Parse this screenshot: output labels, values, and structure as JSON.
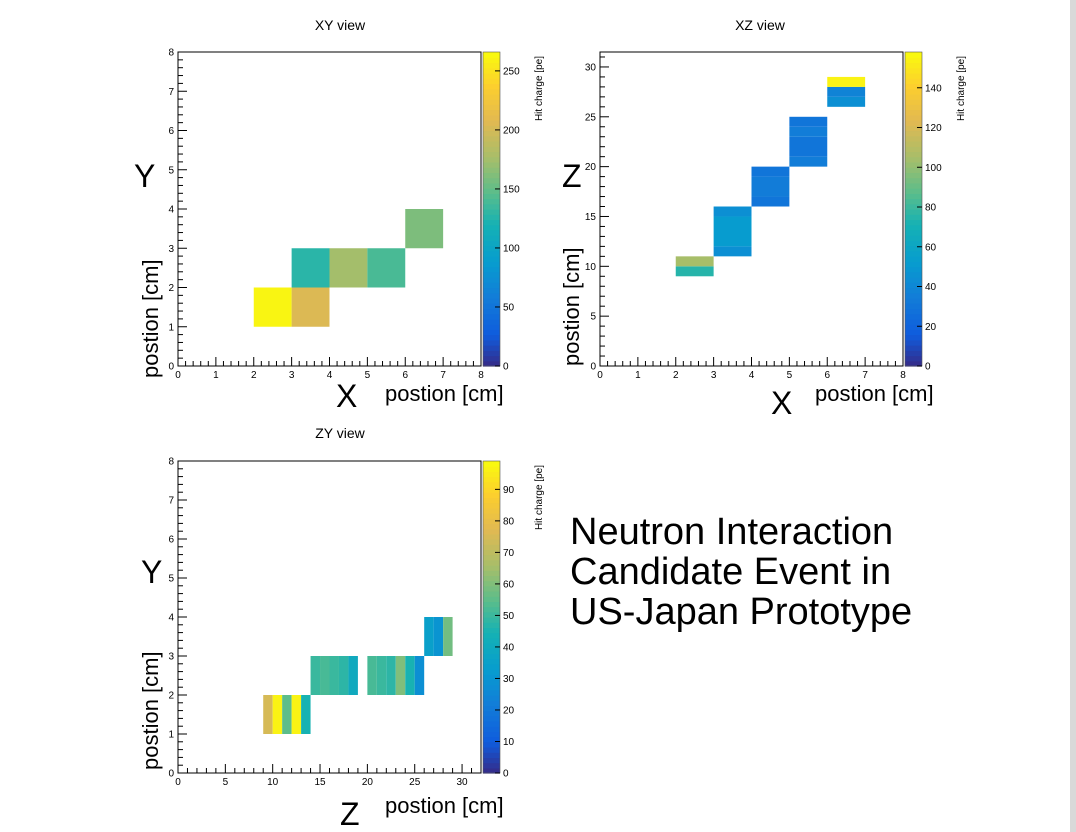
{
  "caption": {
    "lines": [
      "Neutron Interaction",
      "Candidate Event in",
      "US-Japan Prototype"
    ]
  },
  "chart_data": [
    {
      "type": "heatmap",
      "title": "XY view",
      "x_axis_big": "X",
      "xlabel": "postion [cm]",
      "y_axis_big": "Y",
      "ylabel": "postion [cm]",
      "zlabel": "Hit charge [pe]",
      "xlim": [
        0,
        8
      ],
      "ylim": [
        0,
        8
      ],
      "zlim": [
        0,
        266
      ],
      "xticks": [
        0,
        1,
        2,
        3,
        4,
        5,
        6,
        7,
        8
      ],
      "yticks": [
        0,
        1,
        2,
        3,
        4,
        5,
        6,
        7,
        8
      ],
      "zticks": [
        0,
        50,
        100,
        150,
        200,
        250
      ],
      "cells": [
        {
          "x": [
            2,
            3
          ],
          "y": [
            1,
            2
          ],
          "value": 262
        },
        {
          "x": [
            3,
            4
          ],
          "y": [
            1,
            2
          ],
          "value": 205
        },
        {
          "x": [
            3,
            4
          ],
          "y": [
            2,
            3
          ],
          "value": 128
        },
        {
          "x": [
            4,
            5
          ],
          "y": [
            2,
            3
          ],
          "value": 175
        },
        {
          "x": [
            5,
            6
          ],
          "y": [
            2,
            3
          ],
          "value": 140
        },
        {
          "x": [
            6,
            7
          ],
          "y": [
            3,
            4
          ],
          "value": 160
        }
      ]
    },
    {
      "type": "heatmap",
      "title": "XZ view",
      "x_axis_big": "X",
      "xlabel": "postion [cm]",
      "y_axis_big": "Z",
      "ylabel": "postion [cm]",
      "zlabel": "Hit charge [pe]",
      "xlim": [
        0,
        8
      ],
      "ylim": [
        0,
        31.5
      ],
      "zlim": [
        0,
        158
      ],
      "xticks": [
        0,
        1,
        2,
        3,
        4,
        5,
        6,
        7,
        8
      ],
      "yticks": [
        0,
        5,
        10,
        15,
        20,
        25,
        30
      ],
      "zticks": [
        0,
        20,
        40,
        60,
        80,
        100,
        120,
        140
      ],
      "cells": [
        {
          "x": [
            2,
            3
          ],
          "y": [
            9,
            10
          ],
          "value": 75
        },
        {
          "x": [
            2,
            3
          ],
          "y": [
            10,
            11
          ],
          "value": 105
        },
        {
          "x": [
            3,
            4
          ],
          "y": [
            11,
            12
          ],
          "value": 45
        },
        {
          "x": [
            3,
            4
          ],
          "y": [
            12,
            15
          ],
          "value": 52
        },
        {
          "x": [
            3,
            4
          ],
          "y": [
            15,
            16
          ],
          "value": 45
        },
        {
          "x": [
            4,
            5
          ],
          "y": [
            16,
            17
          ],
          "value": 30
        },
        {
          "x": [
            4,
            5
          ],
          "y": [
            17,
            19
          ],
          "value": 34
        },
        {
          "x": [
            4,
            5
          ],
          "y": [
            19,
            20
          ],
          "value": 30
        },
        {
          "x": [
            5,
            6
          ],
          "y": [
            20,
            21
          ],
          "value": 35
        },
        {
          "x": [
            5,
            6
          ],
          "y": [
            21,
            23
          ],
          "value": 30
        },
        {
          "x": [
            5,
            6
          ],
          "y": [
            23,
            24
          ],
          "value": 35
        },
        {
          "x": [
            5,
            6
          ],
          "y": [
            24,
            25
          ],
          "value": 30
        },
        {
          "x": [
            6,
            7
          ],
          "y": [
            26,
            27
          ],
          "value": 45
        },
        {
          "x": [
            6,
            7
          ],
          "y": [
            27,
            28
          ],
          "value": 38
        },
        {
          "x": [
            6,
            7
          ],
          "y": [
            28,
            29
          ],
          "value": 155
        }
      ]
    },
    {
      "type": "heatmap",
      "title": "ZY view",
      "x_axis_big": "Z",
      "xlabel": "postion [cm]",
      "y_axis_big": "Y",
      "ylabel": "postion [cm]",
      "zlabel": "Hit charge [pe]",
      "xlim": [
        0,
        32
      ],
      "ylim": [
        0,
        8
      ],
      "zlim": [
        0,
        99
      ],
      "xticks": [
        0,
        5,
        10,
        15,
        20,
        25,
        30
      ],
      "yticks": [
        0,
        1,
        2,
        3,
        4,
        5,
        6,
        7,
        8
      ],
      "zticks": [
        0,
        10,
        20,
        30,
        40,
        50,
        60,
        70,
        80,
        90
      ],
      "cells": [
        {
          "x": [
            9,
            10
          ],
          "y": [
            1,
            2
          ],
          "value": 75
        },
        {
          "x": [
            10,
            11
          ],
          "y": [
            1,
            2
          ],
          "value": 97
        },
        {
          "x": [
            11,
            12
          ],
          "y": [
            1,
            2
          ],
          "value": 55
        },
        {
          "x": [
            12,
            13
          ],
          "y": [
            1,
            2
          ],
          "value": 97
        },
        {
          "x": [
            13,
            14
          ],
          "y": [
            1,
            2
          ],
          "value": 45
        },
        {
          "x": [
            14,
            15
          ],
          "y": [
            2,
            3
          ],
          "value": 50
        },
        {
          "x": [
            15,
            16
          ],
          "y": [
            2,
            3
          ],
          "value": 52
        },
        {
          "x": [
            16,
            17
          ],
          "y": [
            2,
            3
          ],
          "value": 50
        },
        {
          "x": [
            17,
            18
          ],
          "y": [
            2,
            3
          ],
          "value": 48
        },
        {
          "x": [
            18,
            19
          ],
          "y": [
            2,
            3
          ],
          "value": 40
        },
        {
          "x": [
            20,
            21
          ],
          "y": [
            2,
            3
          ],
          "value": 52
        },
        {
          "x": [
            21,
            22
          ],
          "y": [
            2,
            3
          ],
          "value": 50
        },
        {
          "x": [
            22,
            23
          ],
          "y": [
            2,
            3
          ],
          "value": 48
        },
        {
          "x": [
            23,
            24
          ],
          "y": [
            2,
            3
          ],
          "value": 60
        },
        {
          "x": [
            24,
            25
          ],
          "y": [
            2,
            3
          ],
          "value": 45
        },
        {
          "x": [
            25,
            26
          ],
          "y": [
            2,
            3
          ],
          "value": 28
        },
        {
          "x": [
            26,
            27
          ],
          "y": [
            3,
            4
          ],
          "value": 35
        },
        {
          "x": [
            27,
            28
          ],
          "y": [
            3,
            4
          ],
          "value": 30
        },
        {
          "x": [
            28,
            29
          ],
          "y": [
            3,
            4
          ],
          "value": 58
        }
      ]
    }
  ]
}
